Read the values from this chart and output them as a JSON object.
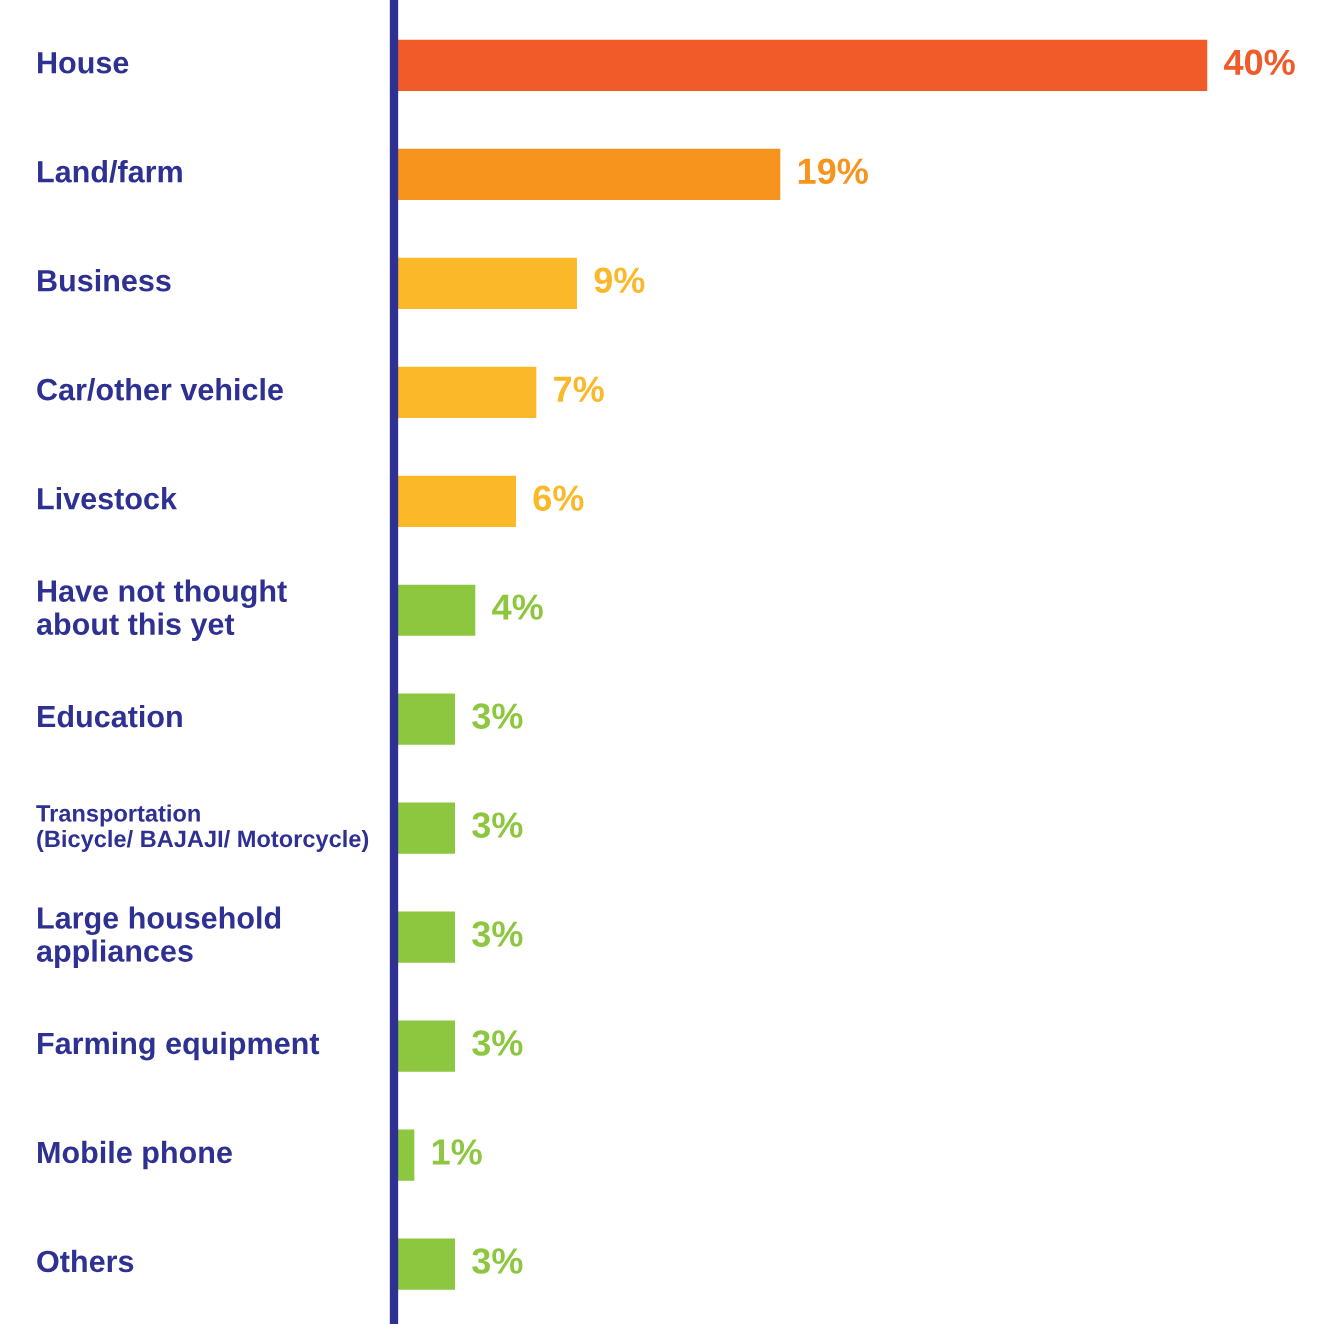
{
  "chart_data": {
    "type": "bar",
    "orientation": "horizontal",
    "value_labels": [
      "40%",
      "19%",
      "9%",
      "7%",
      "6%",
      "4%",
      "3%",
      "3%",
      "3%",
      "3%",
      "1%",
      "3%"
    ],
    "categories": [
      "House",
      "Land/farm",
      "Business",
      "Car/other vehicle",
      "Livestock",
      "Have not thought\nabout this yet",
      "Education",
      "Transportation\n(Bicycle/ BAJAJI/ Motorcycle)",
      "Large household\nappliances",
      "Farming equipment",
      "Mobile phone",
      "Others"
    ],
    "values": [
      40,
      19,
      9,
      7,
      6,
      4,
      3,
      3,
      3,
      3,
      1,
      3
    ],
    "colors": [
      "#f15a29",
      "#f7941d",
      "#fbb829",
      "#fbb829",
      "#fbb829",
      "#8dc63f",
      "#8dc63f",
      "#8dc63f",
      "#8dc63f",
      "#8dc63f",
      "#8dc63f",
      "#8dc63f"
    ]
  }
}
